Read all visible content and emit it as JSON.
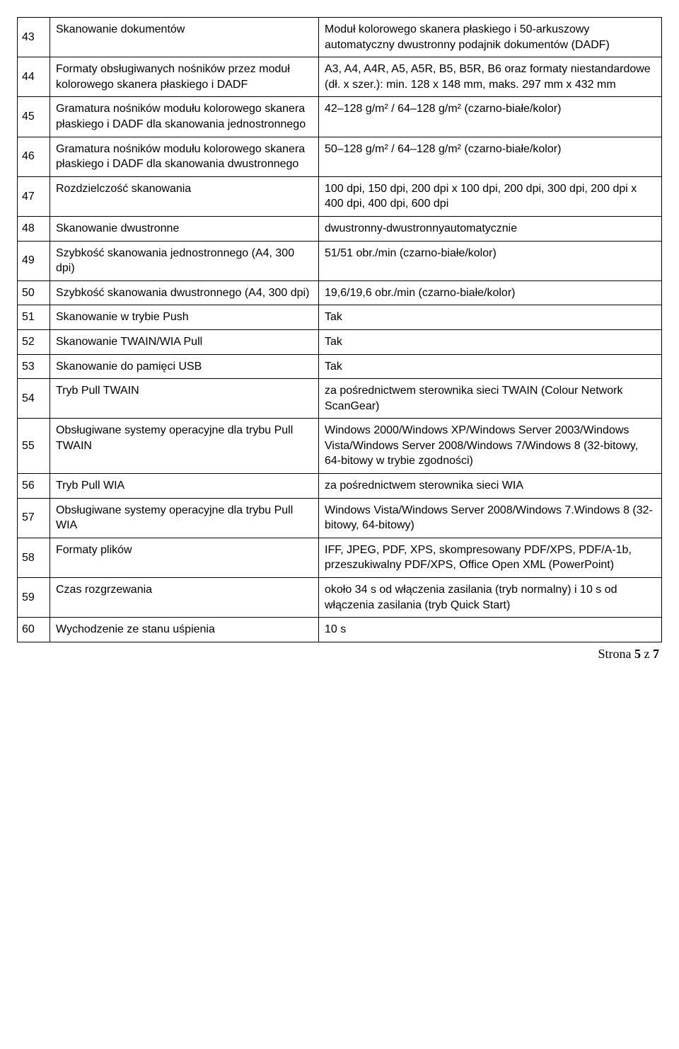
{
  "rows": [
    {
      "n": "43",
      "param": "Skanowanie dokumentów",
      "value": "Moduł kolorowego skanera płaskiego i 50-arkuszowy automatyczny dwustronny podajnik dokumentów (DADF)"
    },
    {
      "n": "44",
      "param": "Formaty obsługiwanych nośników przez moduł kolorowego skanera płaskiego i DADF",
      "value": "A3, A4, A4R, A5, A5R, B5, B5R, B6 oraz formaty niestandardowe (dł. x szer.): min. 128 x 148 mm, maks. 297 mm x 432 mm"
    },
    {
      "n": "45",
      "param": "Gramatura nośników modułu kolorowego skanera płaskiego i DADF dla skanowania jednostronnego",
      "value": "42–128 g/m² / 64–128 g/m² (czarno-białe/kolor)"
    },
    {
      "n": "46",
      "param": "Gramatura nośników modułu kolorowego skanera płaskiego i DADF dla skanowania dwustronnego",
      "value": "50–128 g/m² / 64–128 g/m² (czarno-białe/kolor)"
    },
    {
      "n": "47",
      "param": "Rozdzielczość skanowania",
      "value": "100 dpi, 150 dpi, 200 dpi x 100 dpi, 200 dpi, 300 dpi, 200 dpi x 400 dpi, 400 dpi, 600 dpi"
    },
    {
      "n": "48",
      "param": "Skanowanie dwustronne",
      "value": "dwustronny-dwustronnyautomatycznie"
    },
    {
      "n": "49",
      "param": "Szybkość skanowania jednostronnego (A4, 300 dpi)",
      "value": "51/51 obr./min (czarno-białe/kolor)"
    },
    {
      "n": "50",
      "param": "Szybkość skanowania dwustronnego (A4, 300 dpi)",
      "value": "19,6/19,6 obr./min (czarno-białe/kolor)"
    },
    {
      "n": "51",
      "param": "Skanowanie w trybie Push",
      "value": "Tak"
    },
    {
      "n": "52",
      "param": "Skanowanie TWAIN/WIA Pull",
      "value": "Tak"
    },
    {
      "n": "53",
      "param": "Skanowanie do pamięci USB",
      "value": "Tak"
    },
    {
      "n": "54",
      "param": "Tryb Pull TWAIN",
      "value": "za pośrednictwem sterownika sieci TWAIN (Colour Network ScanGear)"
    },
    {
      "n": "55",
      "param": "Obsługiwane systemy operacyjne dla trybu Pull TWAIN",
      "value": "Windows 2000/Windows XP/Windows Server 2003/Windows Vista/Windows Server 2008/Windows 7/Windows 8 (32-bitowy, 64-bitowy w trybie zgodności)"
    },
    {
      "n": "56",
      "param": "Tryb Pull WIA",
      "value": "za pośrednictwem sterownika sieci WIA"
    },
    {
      "n": "57",
      "param": "Obsługiwane systemy operacyjne dla trybu Pull WIA",
      "value": "Windows Vista/Windows Server 2008/Windows 7.Windows 8 (32-bitowy, 64-bitowy)"
    },
    {
      "n": "58",
      "param": "Formaty plików",
      "value": "IFF, JPEG, PDF, XPS, skompresowany PDF/XPS, PDF/A-1b, przeszukiwalny PDF/XPS, Office Open XML (PowerPoint)"
    },
    {
      "n": "59",
      "param": "Czas rozgrzewania",
      "value": "około 34 s od włączenia zasilania (tryb normalny) i 10 s od włączenia zasilania (tryb Quick Start)"
    },
    {
      "n": "60",
      "param": "Wychodzenie ze stanu uśpienia",
      "value": "10 s"
    }
  ],
  "footer": {
    "prefix": "Strona ",
    "page": "5",
    "sep": " z ",
    "total": "7"
  }
}
